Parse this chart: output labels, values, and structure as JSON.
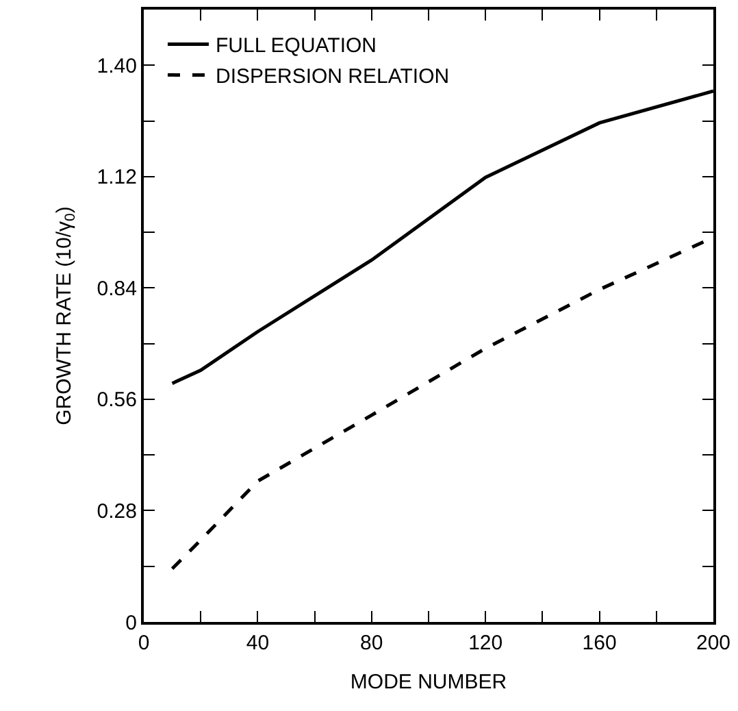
{
  "chart_data": {
    "type": "line",
    "xlabel": "MODE NUMBER",
    "ylabel": "GROWTH RATE (10/γ$_{0}$)",
    "x": [
      10,
      20,
      40,
      80,
      120,
      160,
      200
    ],
    "series": [
      {
        "name": "FULL EQUATION",
        "color": "#000000",
        "line_style": "solid",
        "values": [
          0.6,
          0.633,
          0.73,
          0.91,
          1.118,
          1.255,
          1.335
        ]
      },
      {
        "name": "DISPERSION RELATION",
        "color": "#000000",
        "line_style": "dashed",
        "values": [
          0.134,
          0.206,
          0.354,
          0.52,
          0.688,
          0.836,
          0.967
        ]
      }
    ],
    "xlim": [
      0,
      200
    ],
    "ylim": [
      0,
      1.54
    ],
    "xticks": [
      0,
      {
        "value": 20,
        "label": null
      },
      40,
      {
        "value": 60,
        "label": null
      },
      80,
      {
        "value": 100,
        "label": null
      },
      120,
      {
        "value": 140,
        "label": null
      },
      160,
      {
        "value": 180,
        "label": null
      },
      200
    ],
    "yticks": [
      0,
      {
        "value": 0.14,
        "label": null
      },
      0.28,
      {
        "value": 0.42,
        "label": null
      },
      0.56,
      {
        "value": 0.7,
        "label": null
      },
      0.84,
      {
        "value": 0.98,
        "label": null
      },
      1.12,
      {
        "value": 1.26,
        "label": null
      },
      {
        "value": 1.4,
        "label": "1.40"
      }
    ],
    "legend": "top left",
    "marker": "none"
  }
}
